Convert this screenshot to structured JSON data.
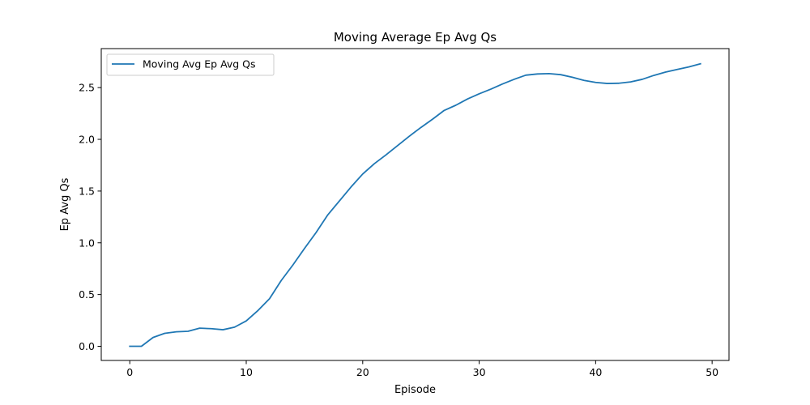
{
  "chart_data": {
    "type": "line",
    "title": "Moving Average Ep Avg Qs",
    "xlabel": "Episode",
    "ylabel": "Ep Avg Qs",
    "xlim": [
      -2.45,
      51.45
    ],
    "ylim": [
      -0.137,
      2.877
    ],
    "xticks": [
      0,
      10,
      20,
      30,
      40,
      50
    ],
    "yticks": [
      0.0,
      0.5,
      1.0,
      1.5,
      2.0,
      2.5
    ],
    "xtick_labels": [
      "0",
      "10",
      "20",
      "30",
      "40",
      "50"
    ],
    "ytick_labels": [
      "0.0",
      "0.5",
      "1.0",
      "1.5",
      "2.0",
      "2.5"
    ],
    "grid": false,
    "legend_position": "upper-left",
    "series": [
      {
        "name": "Moving Avg Ep Avg Qs",
        "color": "#1f77b4",
        "x": [
          0,
          1,
          2,
          3,
          4,
          5,
          6,
          7,
          8,
          9,
          10,
          11,
          12,
          13,
          14,
          15,
          16,
          17,
          18,
          19,
          20,
          21,
          22,
          23,
          24,
          25,
          26,
          27,
          28,
          29,
          30,
          31,
          32,
          33,
          34,
          35,
          36,
          37,
          38,
          39,
          40,
          41,
          42,
          43,
          44,
          45,
          46,
          47,
          48,
          49
        ],
        "y": [
          0.0,
          0.0,
          0.085,
          0.125,
          0.14,
          0.145,
          0.175,
          0.17,
          0.16,
          0.185,
          0.245,
          0.345,
          0.46,
          0.635,
          0.785,
          0.945,
          1.1,
          1.27,
          1.405,
          1.54,
          1.665,
          1.765,
          1.85,
          1.94,
          2.03,
          2.115,
          2.195,
          2.28,
          2.33,
          2.39,
          2.44,
          2.485,
          2.535,
          2.58,
          2.62,
          2.632,
          2.635,
          2.625,
          2.6,
          2.57,
          2.55,
          2.54,
          2.542,
          2.555,
          2.58,
          2.618,
          2.65,
          2.675,
          2.7,
          2.73
        ]
      }
    ]
  }
}
